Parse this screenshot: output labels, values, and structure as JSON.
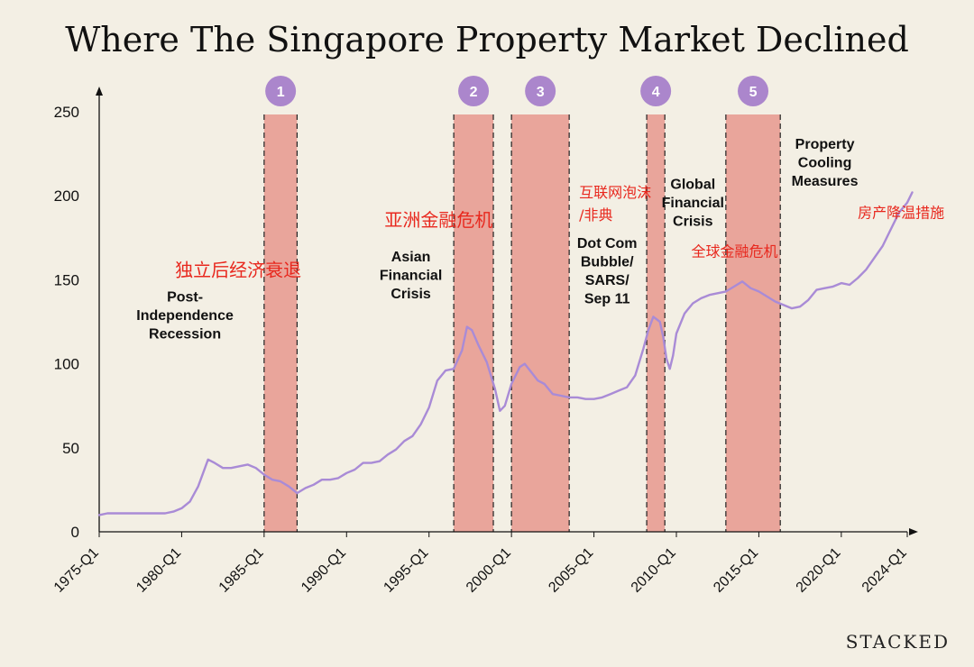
{
  "title": "Where The Singapore Property Market Declined",
  "brand": "STACKED",
  "colors": {
    "background": "#f3efe4",
    "band": "#e9a59b",
    "line": "#a98bd6",
    "badge": "#ab86cc",
    "annotation_cn": "#e8281e"
  },
  "chart_data": {
    "type": "line",
    "x_range": [
      1975.0,
      2024.0
    ],
    "ylim": [
      0,
      250
    ],
    "yticks": [
      0,
      50,
      100,
      150,
      200,
      250
    ],
    "xticks": [
      {
        "value": 1975.0,
        "label": "1975-Q1"
      },
      {
        "value": 1980.0,
        "label": "1980-Q1"
      },
      {
        "value": 1985.0,
        "label": "1985-Q1"
      },
      {
        "value": 1990.0,
        "label": "1990-Q1"
      },
      {
        "value": 1995.0,
        "label": "1995-Q1"
      },
      {
        "value": 2000.0,
        "label": "2000-Q1"
      },
      {
        "value": 2005.0,
        "label": "2005-Q1"
      },
      {
        "value": 2010.0,
        "label": "2010-Q1"
      },
      {
        "value": 2015.0,
        "label": "2015-Q1"
      },
      {
        "value": 2020.0,
        "label": "2020-Q1"
      },
      {
        "value": 2024.0,
        "label": "2024-Q1"
      }
    ],
    "series": [
      {
        "points": [
          [
            1975.0,
            10
          ],
          [
            1975.5,
            11
          ],
          [
            1976.0,
            11
          ],
          [
            1977.0,
            11
          ],
          [
            1978.0,
            11
          ],
          [
            1979.0,
            11
          ],
          [
            1979.5,
            12
          ],
          [
            1980.0,
            14
          ],
          [
            1980.5,
            18
          ],
          [
            1981.0,
            27
          ],
          [
            1981.3,
            35
          ],
          [
            1981.6,
            43
          ],
          [
            1982.0,
            41
          ],
          [
            1982.5,
            38
          ],
          [
            1983.0,
            38
          ],
          [
            1983.5,
            39
          ],
          [
            1984.0,
            40
          ],
          [
            1984.5,
            38
          ],
          [
            1985.0,
            34
          ],
          [
            1985.5,
            31
          ],
          [
            1986.0,
            30
          ],
          [
            1986.5,
            27
          ],
          [
            1987.0,
            23
          ],
          [
            1987.5,
            26
          ],
          [
            1988.0,
            28
          ],
          [
            1988.5,
            31
          ],
          [
            1989.0,
            31
          ],
          [
            1989.5,
            32
          ],
          [
            1990.0,
            35
          ],
          [
            1990.5,
            37
          ],
          [
            1991.0,
            41
          ],
          [
            1991.5,
            41
          ],
          [
            1992.0,
            42
          ],
          [
            1992.5,
            46
          ],
          [
            1993.0,
            49
          ],
          [
            1993.5,
            54
          ],
          [
            1994.0,
            57
          ],
          [
            1994.5,
            64
          ],
          [
            1995.0,
            74
          ],
          [
            1995.5,
            90
          ],
          [
            1996.0,
            96
          ],
          [
            1996.5,
            97
          ],
          [
            1997.0,
            108
          ],
          [
            1997.3,
            122
          ],
          [
            1997.6,
            120
          ],
          [
            1998.0,
            111
          ],
          [
            1998.5,
            101
          ],
          [
            1999.0,
            85
          ],
          [
            1999.3,
            72
          ],
          [
            1999.6,
            75
          ],
          [
            2000.0,
            88
          ],
          [
            2000.5,
            98
          ],
          [
            2000.8,
            100
          ],
          [
            2001.2,
            95
          ],
          [
            2001.6,
            90
          ],
          [
            2002.0,
            88
          ],
          [
            2002.5,
            82
          ],
          [
            2003.0,
            81
          ],
          [
            2003.5,
            80
          ],
          [
            2004.0,
            80
          ],
          [
            2004.5,
            79
          ],
          [
            2005.0,
            79
          ],
          [
            2005.5,
            80
          ],
          [
            2006.0,
            82
          ],
          [
            2006.5,
            84
          ],
          [
            2007.0,
            86
          ],
          [
            2007.5,
            93
          ],
          [
            2008.0,
            109
          ],
          [
            2008.3,
            120
          ],
          [
            2008.6,
            128
          ],
          [
            2009.0,
            125
          ],
          [
            2009.2,
            116
          ],
          [
            2009.4,
            103
          ],
          [
            2009.6,
            97
          ],
          [
            2009.8,
            105
          ],
          [
            2010.0,
            118
          ],
          [
            2010.5,
            130
          ],
          [
            2011.0,
            136
          ],
          [
            2011.5,
            139
          ],
          [
            2012.0,
            141
          ],
          [
            2012.5,
            142
          ],
          [
            2013.0,
            143
          ],
          [
            2013.5,
            146
          ],
          [
            2014.0,
            149
          ],
          [
            2014.5,
            145
          ],
          [
            2015.0,
            143
          ],
          [
            2015.5,
            140
          ],
          [
            2016.0,
            137
          ],
          [
            2016.5,
            135
          ],
          [
            2017.0,
            133
          ],
          [
            2017.5,
            134
          ],
          [
            2018.0,
            138
          ],
          [
            2018.5,
            144
          ],
          [
            2019.0,
            145
          ],
          [
            2019.5,
            146
          ],
          [
            2020.0,
            148
          ],
          [
            2020.5,
            147
          ],
          [
            2021.0,
            151
          ],
          [
            2021.5,
            156
          ],
          [
            2022.0,
            163
          ],
          [
            2022.5,
            170
          ],
          [
            2023.0,
            180
          ],
          [
            2023.5,
            190
          ],
          [
            2024.0,
            196
          ],
          [
            2024.3,
            202
          ]
        ]
      }
    ],
    "bands": [
      {
        "badge": "1",
        "start": 1985.0,
        "end": 1987.0
      },
      {
        "badge": "2",
        "start": 1996.5,
        "end": 1998.9
      },
      {
        "badge": "3",
        "start": 2000.0,
        "end": 2003.5
      },
      {
        "badge": "4",
        "start": 2008.2,
        "end": 2009.3
      },
      {
        "badge": "5",
        "start": 2013.0,
        "end": 2016.3
      }
    ],
    "annotations": [
      {
        "id": "post-independence",
        "lines": [
          "Post-",
          "Independence",
          "Recession"
        ],
        "anchor_x": 1980.2,
        "top_y": 137,
        "chinese": "独立后经济衰退",
        "cn_x": 1979.6,
        "cn_y": 152
      },
      {
        "id": "asian-financial",
        "lines": [
          "Asian",
          "Financial",
          "Crisis"
        ],
        "anchor_x": 1993.9,
        "top_y": 161,
        "chinese": "亚洲金融危机",
        "cn_x": 1992.3,
        "cn_y": 182
      },
      {
        "id": "dot-com",
        "lines": [
          "Dot Com",
          "Bubble/",
          "SARS/",
          "Sep 11"
        ],
        "anchor_x": 2005.8,
        "top_y": 169,
        "chinese": "互联网泡沫/非典",
        "cn_x": 2004.1,
        "cn_y": 199
      },
      {
        "id": "global-financial",
        "lines": [
          "Global",
          "Financial",
          "Crisis"
        ],
        "anchor_x": 2011.0,
        "top_y": 204,
        "chinese": "全球金融危机",
        "cn_x": 2010.9,
        "cn_y": 164
      },
      {
        "id": "cooling-measures",
        "lines": [
          "Property",
          "Cooling",
          "Measures"
        ],
        "anchor_x": 2019.0,
        "top_y": 228,
        "chinese": "房产降温措施",
        "cn_x": 2021.0,
        "cn_y": 187
      }
    ]
  }
}
